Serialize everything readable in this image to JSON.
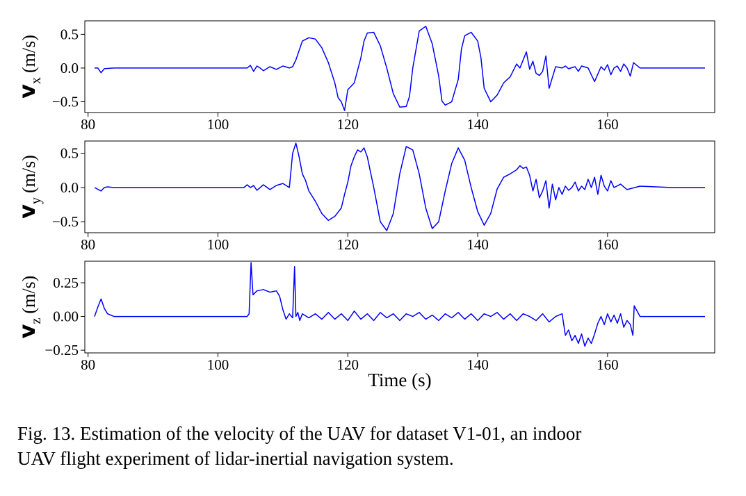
{
  "chart_data": [
    {
      "type": "line",
      "ylabel": {
        "symbol": "v",
        "subscript": "x",
        "unit": "(m/s)"
      },
      "xlabel": "",
      "xticks": [
        "80",
        "100",
        "120",
        "140",
        "160"
      ],
      "yticks": [
        "−0.5",
        "0.0",
        "0.5"
      ],
      "xlim": [
        79.5,
        176.5
      ],
      "ylim": [
        -0.66,
        0.7
      ],
      "ytick_values": [
        -0.5,
        0.0,
        0.5
      ],
      "xtick_values": [
        80,
        100,
        120,
        140,
        160
      ],
      "color": "#0000ff",
      "series": [
        {
          "name": "vx",
          "x": [
            81,
            81.5,
            82,
            82.5,
            84,
            90,
            95,
            100,
            104,
            104.5,
            105,
            105.5,
            106,
            106.5,
            107,
            108,
            109,
            110,
            111,
            111.5,
            112,
            113,
            114,
            115,
            116,
            117,
            118,
            118.5,
            119,
            119.5,
            120,
            121,
            122,
            122.5,
            123,
            124,
            125,
            126,
            127,
            128,
            129,
            129.5,
            130,
            131,
            132,
            133,
            134,
            134.5,
            135,
            136,
            137,
            137.5,
            138,
            139,
            140,
            140.5,
            141,
            142,
            143,
            144,
            145,
            146,
            146.5,
            147,
            147.5,
            148,
            148.5,
            149,
            149.5,
            150,
            150.5,
            151,
            152,
            153,
            153.5,
            154,
            155,
            155.5,
            156,
            157,
            158,
            159,
            159.5,
            160,
            160.5,
            161,
            161.5,
            162,
            162.5,
            163,
            163.5,
            164,
            165,
            170,
            175
          ],
          "y": [
            0.0,
            0.0,
            -0.07,
            -0.01,
            0.0,
            0.0,
            0.0,
            0.0,
            0.0,
            0.0,
            0.04,
            -0.05,
            0.03,
            0.0,
            -0.04,
            0.02,
            -0.02,
            0.03,
            0.0,
            0.02,
            0.12,
            0.4,
            0.45,
            0.43,
            0.3,
            0.08,
            -0.22,
            -0.44,
            -0.5,
            -0.63,
            -0.32,
            -0.22,
            0.15,
            0.4,
            0.52,
            0.53,
            0.33,
            0.0,
            -0.38,
            -0.58,
            -0.57,
            -0.42,
            0.0,
            0.55,
            0.62,
            0.36,
            -0.12,
            -0.49,
            -0.55,
            -0.5,
            -0.17,
            0.28,
            0.48,
            0.53,
            0.4,
            0.15,
            -0.3,
            -0.5,
            -0.4,
            -0.22,
            -0.13,
            0.06,
            0.0,
            0.12,
            0.24,
            -0.02,
            0.1,
            -0.08,
            -0.11,
            -0.05,
            0.18,
            -0.3,
            0.02,
            0.0,
            0.03,
            -0.01,
            0.02,
            -0.05,
            0.03,
            0.0,
            -0.2,
            0.02,
            -0.03,
            0.05,
            -0.1,
            0.0,
            0.03,
            -0.05,
            0.06,
            0.0,
            -0.12,
            0.08,
            0.0,
            0.0,
            0.0
          ]
        }
      ]
    },
    {
      "type": "line",
      "ylabel": {
        "symbol": "v",
        "subscript": "y",
        "unit": "(m/s)"
      },
      "xlabel": "",
      "xticks": [
        "80",
        "100",
        "120",
        "140",
        "160"
      ],
      "yticks": [
        "−0.5",
        "0.0",
        "0.5"
      ],
      "xlim": [
        79.5,
        176.5
      ],
      "ylim": [
        -0.66,
        0.68
      ],
      "ytick_values": [
        -0.5,
        0.0,
        0.5
      ],
      "xtick_values": [
        80,
        100,
        120,
        140,
        160
      ],
      "color": "#0000ff",
      "series": [
        {
          "name": "vy",
          "x": [
            81,
            82,
            82.5,
            83,
            84,
            86,
            90,
            95,
            100,
            104,
            104.5,
            105,
            105.5,
            106,
            106.5,
            107,
            108,
            109,
            110,
            111,
            111.5,
            112,
            112.5,
            113,
            113.5,
            114,
            115,
            116,
            117,
            118,
            119,
            119.5,
            120,
            120.5,
            121,
            121.5,
            122,
            122.5,
            123,
            124,
            125,
            126,
            127,
            128,
            129,
            130,
            131,
            132,
            133,
            134,
            135,
            136,
            137,
            138,
            139,
            140,
            141,
            142,
            143,
            144,
            145,
            146,
            146.5,
            147,
            147.5,
            148,
            148.5,
            149,
            149.5,
            150,
            150.5,
            151,
            151.5,
            152,
            152.5,
            153,
            153.5,
            154,
            154.5,
            155,
            155.5,
            156,
            156.5,
            157,
            157.5,
            158,
            158.5,
            159,
            159.5,
            160,
            160.5,
            161,
            162,
            163,
            165,
            170,
            175
          ],
          "y": [
            0.0,
            -0.05,
            0.0,
            0.01,
            0.0,
            0.0,
            0.0,
            0.0,
            0.0,
            0.0,
            0.04,
            0.0,
            0.03,
            -0.04,
            0.0,
            0.04,
            -0.03,
            0.03,
            0.06,
            0.0,
            0.5,
            0.65,
            0.45,
            0.2,
            0.1,
            -0.05,
            -0.2,
            -0.38,
            -0.48,
            -0.42,
            -0.3,
            -0.1,
            0.08,
            0.32,
            0.45,
            0.55,
            0.52,
            0.58,
            0.45,
            0.0,
            -0.5,
            -0.63,
            -0.38,
            0.2,
            0.6,
            0.55,
            0.2,
            -0.3,
            -0.6,
            -0.5,
            -0.05,
            0.35,
            0.58,
            0.4,
            0.0,
            -0.35,
            -0.55,
            -0.38,
            -0.02,
            0.15,
            0.2,
            0.26,
            0.32,
            0.28,
            0.3,
            0.18,
            -0.05,
            0.12,
            -0.15,
            -0.05,
            0.1,
            -0.3,
            0.05,
            -0.18,
            0.0,
            -0.1,
            0.02,
            -0.04,
            0.0,
            0.08,
            -0.05,
            0.02,
            -0.03,
            0.12,
            0.0,
            0.15,
            -0.1,
            0.18,
            0.02,
            -0.05,
            0.1,
            0.0,
            0.05,
            -0.03,
            0.02,
            0.0,
            0.0
          ]
        }
      ]
    },
    {
      "type": "line",
      "ylabel": {
        "symbol": "v",
        "subscript": "z",
        "unit": "(m/s)"
      },
      "xlabel": "Time (s)",
      "xticks": [
        "80",
        "100",
        "120",
        "140",
        "160"
      ],
      "yticks": [
        "−0.25",
        "0.00",
        "0.25"
      ],
      "xlim": [
        79.5,
        176.5
      ],
      "ylim": [
        -0.27,
        0.41
      ],
      "ytick_values": [
        -0.25,
        0.0,
        0.25
      ],
      "xtick_values": [
        80,
        100,
        120,
        140,
        160
      ],
      "color": "#0000ff",
      "series": [
        {
          "name": "vz",
          "x": [
            81,
            81.5,
            82,
            82.5,
            83,
            84,
            90,
            100,
            104.5,
            104.8,
            105.1,
            105.4,
            106,
            107,
            108,
            109,
            109.5,
            110,
            110.5,
            111,
            111.5,
            111.8,
            112,
            112.3,
            112.6,
            113,
            114,
            115,
            116,
            117,
            118,
            119,
            120,
            121,
            122,
            123,
            124,
            125,
            126,
            127,
            128,
            129,
            130,
            131,
            132,
            133,
            134,
            135,
            136,
            137,
            138,
            139,
            140,
            141,
            142,
            143,
            144,
            145,
            146,
            147,
            148,
            149,
            150,
            151,
            152,
            153,
            153.5,
            154,
            154.5,
            155,
            155.5,
            156,
            156.5,
            157,
            157.5,
            158,
            158.5,
            159,
            159.5,
            160,
            160.5,
            161,
            161.5,
            162,
            162.5,
            163,
            163.5,
            163.9,
            164.1,
            165,
            170,
            175
          ],
          "y": [
            0.0,
            0.07,
            0.13,
            0.06,
            0.02,
            0.0,
            0.0,
            0.0,
            0.0,
            0.02,
            0.4,
            0.16,
            0.19,
            0.2,
            0.18,
            0.19,
            0.15,
            0.05,
            -0.02,
            0.02,
            -0.01,
            0.37,
            0.0,
            0.03,
            -0.03,
            0.02,
            -0.01,
            0.02,
            -0.02,
            0.03,
            -0.02,
            0.02,
            -0.03,
            0.04,
            -0.02,
            0.02,
            -0.03,
            0.03,
            -0.01,
            0.02,
            -0.03,
            0.02,
            0.0,
            0.03,
            -0.02,
            0.01,
            -0.03,
            0.02,
            -0.01,
            0.03,
            -0.02,
            0.02,
            -0.03,
            0.02,
            0.0,
            0.03,
            -0.02,
            0.02,
            -0.03,
            0.02,
            0.0,
            -0.03,
            0.02,
            -0.04,
            0.0,
            0.02,
            -0.14,
            -0.1,
            -0.18,
            -0.14,
            -0.2,
            -0.13,
            -0.22,
            -0.16,
            -0.2,
            -0.13,
            -0.05,
            0.0,
            -0.06,
            0.02,
            -0.04,
            0.01,
            -0.05,
            0.02,
            -0.08,
            -0.03,
            -0.06,
            -0.14,
            0.08,
            0.0,
            0.0,
            0.0
          ]
        }
      ]
    }
  ],
  "caption": {
    "line1": "Fig. 13.  Estimation of the velocity of the UAV for dataset V1-01, an indoor",
    "line2": "UAV flight experiment of lidar-inertial navigation system."
  }
}
